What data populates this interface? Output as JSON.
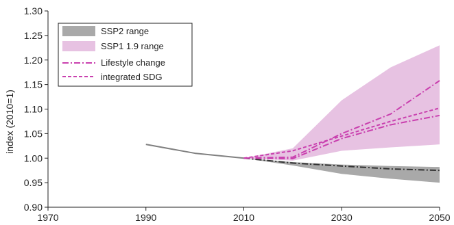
{
  "chart_data": {
    "type": "area",
    "xlabel": "",
    "ylabel": "index (2010=1)",
    "xlim": [
      1970,
      2050
    ],
    "ylim": [
      0.9,
      1.3
    ],
    "xticks": [
      1970,
      1990,
      2010,
      2030,
      2050
    ],
    "xtick_labels": [
      "1970",
      "1990",
      "2010",
      "2030",
      "2050"
    ],
    "yticks": [
      0.9,
      0.95,
      1.0,
      1.05,
      1.1,
      1.15,
      1.2,
      1.25,
      1.3
    ],
    "ytick_labels": [
      "0.90",
      "0.95",
      "1.00",
      "1.05",
      "1.10",
      "1.15",
      "1.20",
      "1.25",
      "1.30"
    ],
    "grid": false,
    "legend_position": "top-left",
    "legend": [
      {
        "label": "SSP2 range",
        "style": "band",
        "color": "#a9a9a9"
      },
      {
        "label": "SSP1 1.9 range",
        "style": "band",
        "color": "#e7c2e2"
      },
      {
        "label": "Lifestyle change",
        "style": "dash-dot",
        "color": "#c93fae"
      },
      {
        "label": "integrated SDG",
        "style": "dashed",
        "color": "#c93fae"
      }
    ],
    "bands": [
      {
        "label": "SSP1 1.9 range",
        "color": "#e7c2e2",
        "x": [
          2010,
          2020,
          2030,
          2040,
          2050
        ],
        "lower": [
          1.0,
          0.995,
          1.015,
          1.022,
          1.028
        ],
        "upper": [
          1.0,
          1.02,
          1.118,
          1.185,
          1.23
        ]
      },
      {
        "label": "SSP2 range",
        "color": "#a9a9a9",
        "x": [
          2010,
          2020,
          2030,
          2040,
          2050
        ],
        "lower": [
          1.0,
          0.985,
          0.968,
          0.958,
          0.95
        ],
        "upper": [
          1.0,
          0.992,
          0.987,
          0.984,
          0.982
        ]
      }
    ],
    "series": [
      {
        "color": "#808080",
        "style": "solid",
        "x": [
          1990,
          2000,
          2010
        ],
        "values": [
          1.028,
          1.01,
          1.0
        ]
      },
      {
        "color": "#333333",
        "style": "dash-dot",
        "x": [
          2010,
          2020,
          2030,
          2040,
          2050
        ],
        "values": [
          1.0,
          0.99,
          0.984,
          0.978,
          0.975
        ]
      },
      {
        "label": "Lifestyle change",
        "color": "#c93fae",
        "style": "dash-dot",
        "x": [
          2010,
          2020,
          2030,
          2040,
          2050
        ],
        "values": [
          1.0,
          1.002,
          1.05,
          1.09,
          1.158
        ]
      },
      {
        "label": "integrated SDG",
        "color": "#c93fae",
        "style": "dashed",
        "x": [
          2010,
          2020,
          2030,
          2040,
          2050
        ],
        "values": [
          1.0,
          1.015,
          1.045,
          1.075,
          1.102
        ]
      },
      {
        "color": "#c93fae",
        "style": "dash-dot",
        "x": [
          2010,
          2020,
          2030,
          2040,
          2050
        ],
        "values": [
          1.0,
          0.999,
          1.04,
          1.068,
          1.087
        ]
      }
    ]
  }
}
